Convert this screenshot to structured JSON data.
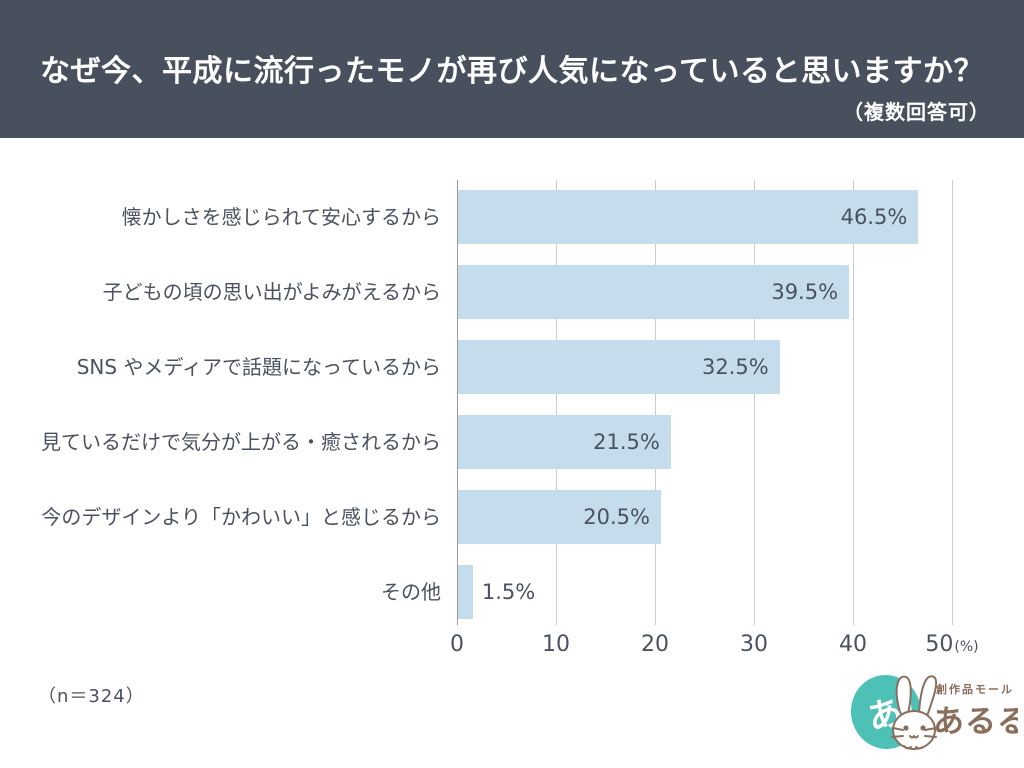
{
  "header": {
    "title": "なぜ今、平成に流行ったモノが再び人気になっていると思いますか？",
    "subtitle": "（複数回答可）",
    "bg_color": "#484F5D"
  },
  "chart_data": {
    "type": "bar",
    "orientation": "horizontal",
    "title": "なぜ今、平成に流行ったモノが再び人気になっていると思いますか？",
    "subtitle": "（複数回答可）",
    "categories": [
      "懐かしさを感じられて安心するから",
      "子どもの頃の思い出がよみがえるから",
      "SNS やメディアで話題になっているから",
      "見ているだけで気分が上がる・癒されるから",
      "今のデザインより「かわいい」と感じるから",
      "その他"
    ],
    "values": [
      46.5,
      39.5,
      32.5,
      21.5,
      20.5,
      1.5
    ],
    "value_labels": [
      "46.5%",
      "39.5%",
      "32.5%",
      "21.5%",
      "20.5%",
      "1.5%"
    ],
    "xlim": [
      0,
      50
    ],
    "tick_values": [
      0,
      10,
      20,
      30,
      40,
      50
    ],
    "tick_labels": [
      "0",
      "10",
      "20",
      "30",
      "40",
      "50"
    ],
    "x_unit": "(%)",
    "grid": true,
    "legend": "none",
    "bar_color": "#C5DCEC",
    "gridline_color": "#CBCBCB",
    "text_color": "#4A5261"
  },
  "footer": {
    "sample_size": "（n＝324）",
    "logo": {
      "badge_text": "あ!",
      "text_small": "創作品モール",
      "text_large": "あるる",
      "teal": "#4EC1B6",
      "brown": "#8A6D5B"
    }
  }
}
